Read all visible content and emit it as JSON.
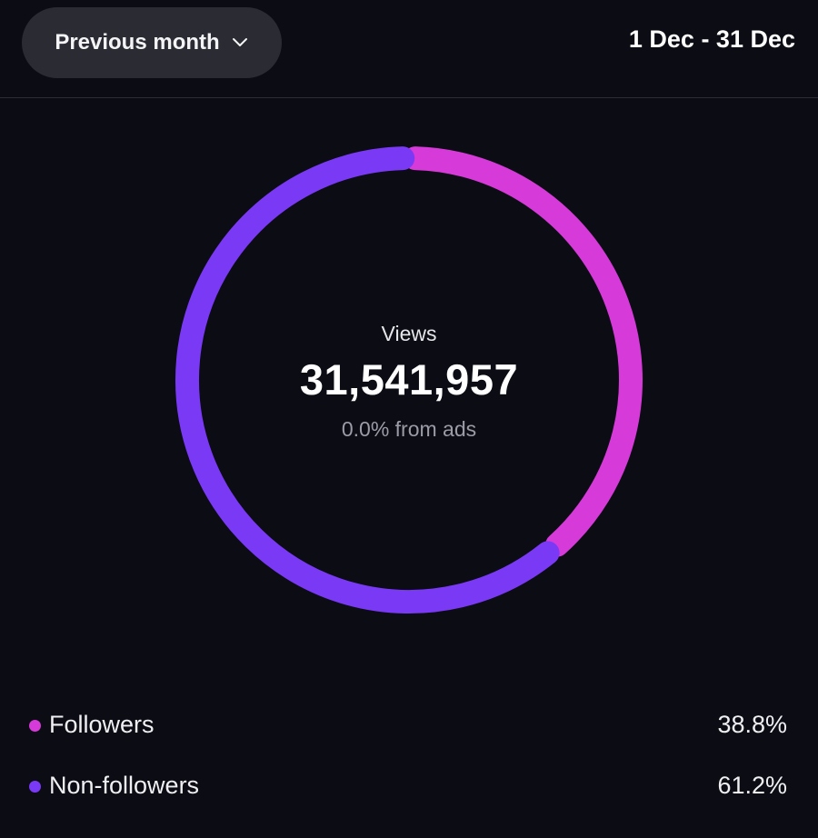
{
  "header": {
    "period_label": "Previous month",
    "date_range": "1 Dec - 31 Dec"
  },
  "summary": {
    "views_label": "Views",
    "views_total": "31,541,957",
    "ads_note": "0.0% from ads"
  },
  "legend": [
    {
      "label": "Followers",
      "value": "38.8%",
      "color": "#d63ad8"
    },
    {
      "label": "Non-followers",
      "value": "61.2%",
      "color": "#7a39f5"
    }
  ],
  "chart_data": {
    "type": "pie",
    "categories": [
      "Followers",
      "Non-followers"
    ],
    "values": [
      38.8,
      61.2
    ],
    "colors": [
      "#d63ad8",
      "#7a39f5"
    ],
    "style": "donut",
    "title": "",
    "center_label": "Views",
    "center_value": "31,541,957"
  }
}
